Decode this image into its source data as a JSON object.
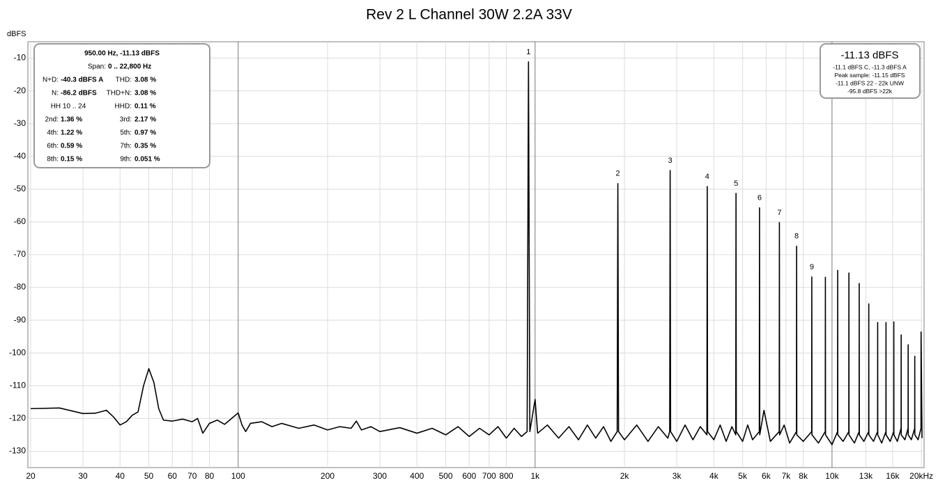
{
  "chart_data": {
    "type": "line",
    "title": "Rev 2 L Channel 30W 2.2A 33V",
    "y_label": "dBFS",
    "log_x": true,
    "grid": true,
    "xlim": [
      20,
      20200
    ],
    "ylim": [
      -135,
      -5
    ],
    "xticks": [
      20,
      30,
      40,
      50,
      60,
      70,
      80,
      100,
      200,
      300,
      400,
      500,
      600,
      700,
      800,
      {
        "value": 1000,
        "label": "1k"
      },
      {
        "value": 2000,
        "label": "2k"
      },
      {
        "value": 3000,
        "label": "3k"
      },
      {
        "value": 4000,
        "label": "4k"
      },
      {
        "value": 5000,
        "label": "5k"
      },
      {
        "value": 6000,
        "label": "6k"
      },
      {
        "value": 7000,
        "label": "7k"
      },
      {
        "value": 8000,
        "label": "8k"
      },
      {
        "value": 10000,
        "label": "10k"
      },
      {
        "value": 13000,
        "label": "13k",
        "color": "#999999"
      },
      {
        "value": 16000,
        "label": "16k",
        "color": "#999999"
      },
      {
        "value": 20000,
        "label": "20kHz"
      }
    ],
    "yticks": [
      -10,
      -20,
      -30,
      -40,
      -50,
      -60,
      -70,
      -80,
      -90,
      -100,
      -110,
      -120,
      -130
    ],
    "x": [
      20,
      25,
      30,
      33,
      35,
      36,
      38,
      40,
      42,
      44,
      46,
      48,
      50,
      52,
      54,
      56,
      60,
      65,
      70,
      73,
      76,
      80,
      85,
      90,
      95,
      100,
      103,
      106,
      110,
      120,
      130,
      140,
      160,
      180,
      200,
      220,
      240,
      250,
      260,
      280,
      300,
      350,
      400,
      450,
      500,
      550,
      600,
      650,
      700,
      750,
      800,
      850,
      900,
      940,
      950,
      960,
      1000,
      1020,
      1100,
      1200,
      1300,
      1400,
      1500,
      1600,
      1700,
      1800,
      1890,
      1900,
      1910,
      2000,
      2200,
      2400,
      2600,
      2800,
      2840,
      2850,
      2860,
      3000,
      3200,
      3400,
      3600,
      3790,
      3800,
      3810,
      4000,
      4200,
      4400,
      4600,
      4740,
      4750,
      4760,
      5000,
      5200,
      5400,
      5690,
      5700,
      5710,
      5900,
      6200,
      6640,
      6650,
      6660,
      6900,
      7200,
      7590,
      7600,
      7610,
      8000,
      8540,
      8550,
      8560,
      9000,
      9490,
      9500,
      9510,
      10000,
      10440,
      10450,
      10460,
      10900,
      11390,
      11400,
      11410,
      11900,
      12340,
      12350,
      12360,
      12800,
      13290,
      13300,
      13310,
      13800,
      14240,
      14250,
      14260,
      14700,
      15190,
      15200,
      15210,
      15700,
      16140,
      16150,
      16160,
      16600,
      17090,
      17100,
      17110,
      17600,
      18040,
      18050,
      18060,
      18500,
      18990,
      19000,
      19010,
      19500,
      19940,
      19950,
      20100
    ],
    "series": [
      {
        "color": "#000000",
        "values": [
          -117,
          -116.8,
          -118.5,
          -118.4,
          -117.8,
          -117.5,
          -119.5,
          -122,
          -121,
          -119,
          -118,
          -110,
          -104.8,
          -109,
          -117,
          -120.5,
          -120.8,
          -120.2,
          -121,
          -120,
          -124.5,
          -121.5,
          -120.5,
          -121.8,
          -120,
          -118.3,
          -122,
          -124,
          -121.5,
          -121,
          -122.5,
          -121.5,
          -123,
          -122,
          -123.5,
          -122.5,
          -123,
          -120.8,
          -123.5,
          -122.5,
          -124,
          -122.8,
          -124.5,
          -123,
          -125,
          -122.5,
          -125.5,
          -123,
          -125,
          -122.5,
          -126,
          -123,
          -125.5,
          -124,
          -11.13,
          -124,
          -114.2,
          -124.5,
          -122,
          -126,
          -122.5,
          -126.5,
          -122,
          -126,
          -122.5,
          -127,
          -124,
          -48.3,
          -124,
          -126.5,
          -122,
          -127,
          -122.5,
          -126,
          -124,
          -44.3,
          -124,
          -127,
          -122,
          -126.5,
          -122.5,
          -125,
          -49.2,
          -124,
          -126.5,
          -122,
          -127,
          -122.5,
          -125,
          -51.3,
          -124,
          -127,
          -122,
          -126.5,
          -124,
          -55.7,
          -125,
          -117.5,
          -127,
          -124,
          -60.2,
          -125,
          -122,
          -127.5,
          -124,
          -67.4,
          -125,
          -127,
          -124,
          -76.8,
          -125,
          -127.5,
          -124,
          -76.9,
          -125,
          -128,
          -124,
          -74.8,
          -125,
          -127,
          -124,
          -75.6,
          -125,
          -127.5,
          -124,
          -78.8,
          -125,
          -127,
          -124,
          -85,
          -125,
          -127,
          -124,
          -90.7,
          -125,
          -127.5,
          -124,
          -90.7,
          -125,
          -127,
          -124,
          -90.5,
          -125,
          -127,
          -123,
          -94.5,
          -125,
          -126.5,
          -123,
          -97.5,
          -125,
          -126.5,
          -123,
          -101,
          -125,
          -126.5,
          -123,
          -93.6,
          -126
        ]
      }
    ],
    "annotations": [
      {
        "text": "1",
        "x": 950,
        "y": -11.13
      },
      {
        "text": "2",
        "x": 1900,
        "y": -48.3
      },
      {
        "text": "3",
        "x": 2850,
        "y": -44.3
      },
      {
        "text": "4",
        "x": 3800,
        "y": -49.2
      },
      {
        "text": "5",
        "x": 4750,
        "y": -51.3
      },
      {
        "text": "6",
        "x": 5700,
        "y": -55.7
      },
      {
        "text": "7",
        "x": 6650,
        "y": -60.2
      },
      {
        "text": "8",
        "x": 7600,
        "y": -67.4
      },
      {
        "text": "9",
        "x": 8550,
        "y": -76.8
      }
    ],
    "info_box": {
      "header": "950.00 Hz, -11.13 dBFS",
      "span_label": "Span:",
      "span": "0 .. 22,800 Hz",
      "rows": [
        [
          "N+D:",
          "-40.3 dBFS A",
          "THD:",
          "3.08 %"
        ],
        [
          "N:",
          "-86.2 dBFS",
          "THD+N:",
          "3.08 %"
        ],
        [
          "HH 10 .. 24",
          "",
          "HHD:",
          "0.11 %"
        ],
        [
          "2nd:",
          "1.36 %",
          "3rd:",
          "2.17 %"
        ],
        [
          "4th:",
          "1.22 %",
          "5th:",
          "0.97 %"
        ],
        [
          "6th:",
          "0.59 %",
          "7th:",
          "0.35 %"
        ],
        [
          "8th:",
          "0.15 %",
          "9th:",
          "0.051 %"
        ]
      ]
    },
    "level_box": {
      "level": "-11.13 dBFS",
      "lines": [
        "-11.1 dBFS C, -11.3 dBFS A",
        "Peak sample: -11.15 dBFS",
        "-11.1 dBFS 22 - 22k UNW",
        "-95.8 dBFS >22k"
      ]
    }
  }
}
